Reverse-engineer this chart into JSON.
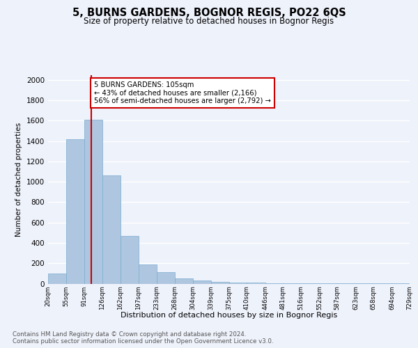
{
  "title": "5, BURNS GARDENS, BOGNOR REGIS, PO22 6QS",
  "subtitle": "Size of property relative to detached houses in Bognor Regis",
  "xlabel": "Distribution of detached houses by size in Bognor Regis",
  "ylabel": "Number of detached properties",
  "annotation_line1": "5 BURNS GARDENS: 105sqm",
  "annotation_line2": "← 43% of detached houses are smaller (2,166)",
  "annotation_line3": "56% of semi-detached houses are larger (2,792) →",
  "property_size": 105,
  "bin_edges": [
    20,
    55,
    91,
    126,
    162,
    197,
    233,
    268,
    304,
    339,
    375,
    410,
    446,
    481,
    516,
    552,
    587,
    623,
    658,
    694,
    729
  ],
  "bar_heights": [
    100,
    1420,
    1610,
    1060,
    470,
    190,
    115,
    50,
    30,
    18,
    12,
    8,
    6,
    4,
    3,
    2,
    2,
    1,
    1,
    1
  ],
  "bar_color": "#aec6df",
  "bar_edge_color": "#7aadd0",
  "vline_color": "#cc0000",
  "vline_x": 105,
  "annotation_box_edge": "#cc0000",
  "annotation_box_face": "#ffffff",
  "ylim": [
    0,
    2050
  ],
  "yticks": [
    0,
    200,
    400,
    600,
    800,
    1000,
    1200,
    1400,
    1600,
    1800,
    2000
  ],
  "footer_line1": "Contains HM Land Registry data © Crown copyright and database right 2024.",
  "footer_line2": "Contains public sector information licensed under the Open Government Licence v3.0.",
  "bg_color": "#eef2fb",
  "plot_bg_color": "#eef2fb",
  "grid_color": "#ffffff"
}
